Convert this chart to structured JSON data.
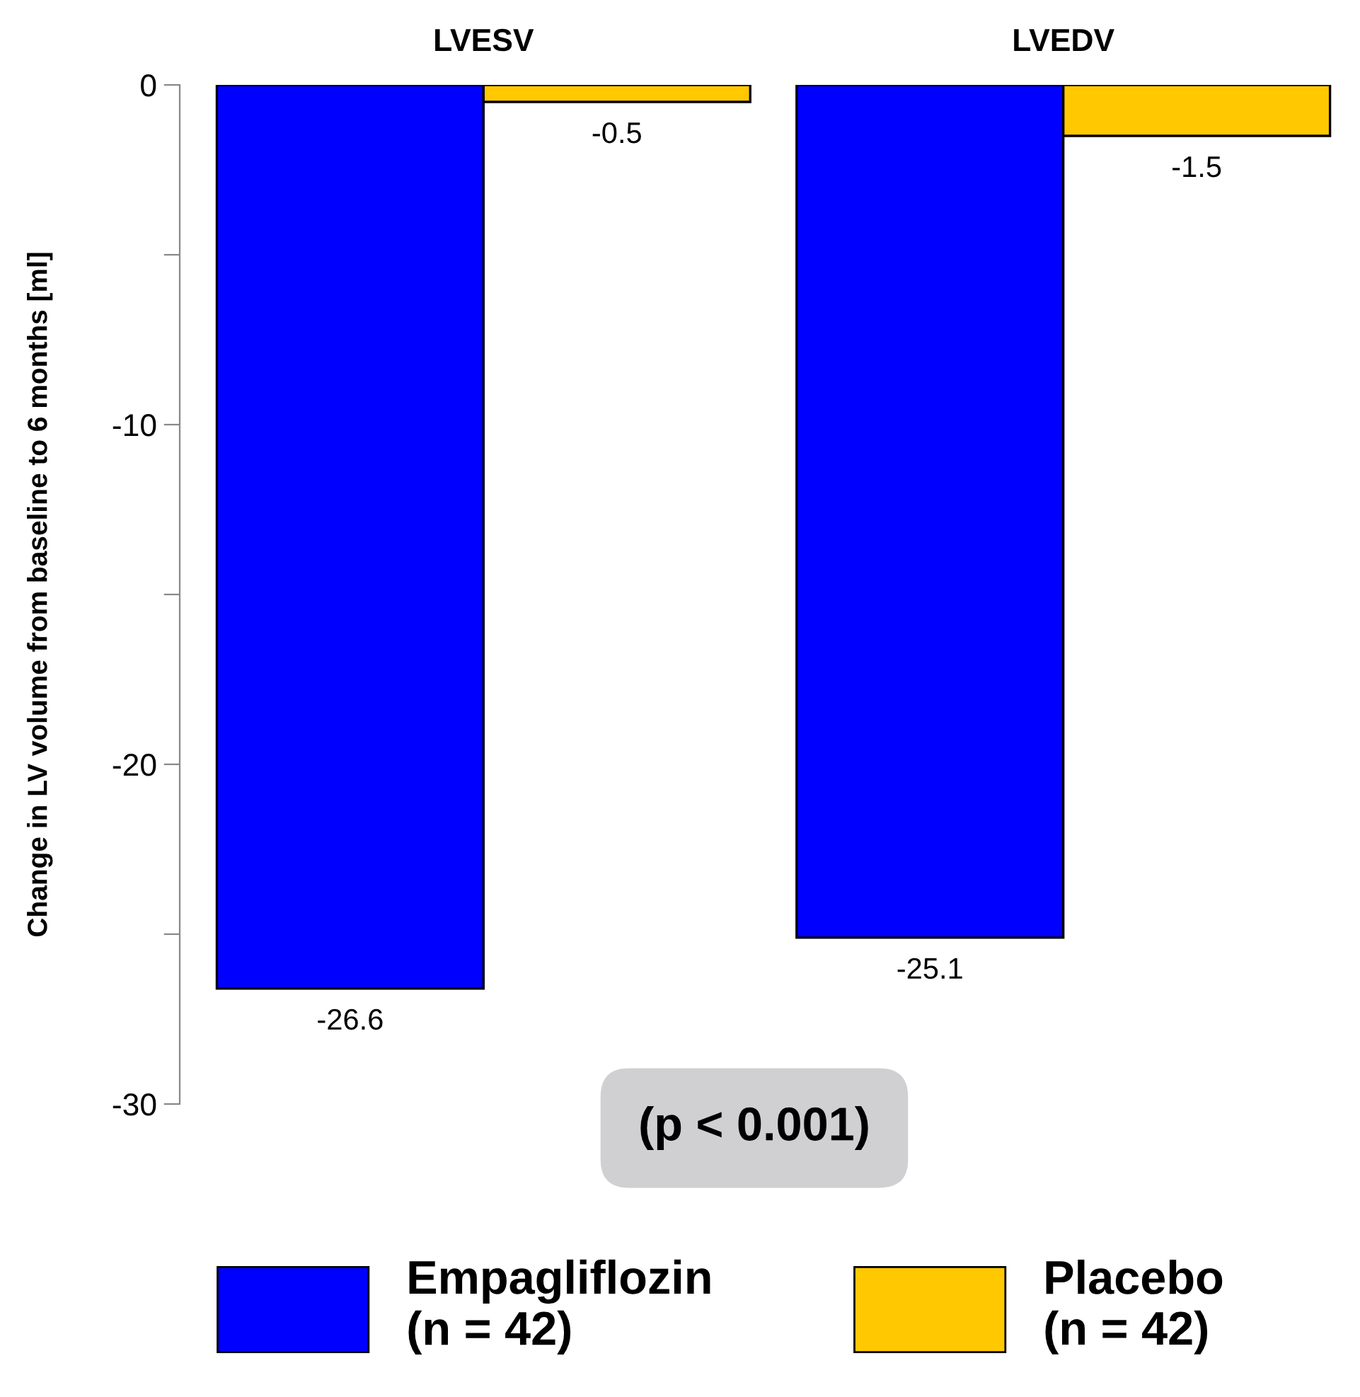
{
  "chart_data": {
    "type": "bar",
    "ylabel": "Change in LV volume from baseline to 6 months [ml]",
    "categories": [
      "LVESV",
      "LVEDV"
    ],
    "series": [
      {
        "name": "Empagliflozin\n(n = 42)",
        "color": "#0000ff",
        "values": [
          -26.6,
          -25.1
        ]
      },
      {
        "name": "Placebo\n(n = 42)",
        "color": "#ffc800",
        "values": [
          -0.5,
          -1.5
        ]
      }
    ],
    "ylim": [
      -30,
      0
    ],
    "yticks": [
      0,
      {
        "value": -5,
        "label": null
      },
      -10,
      {
        "value": -15,
        "label": null
      },
      -20,
      {
        "value": -25,
        "label": null
      },
      -30
    ],
    "data_labels": true,
    "annotations": [
      "(p < 0.001)"
    ],
    "legend": "bottom",
    "grid": false
  }
}
